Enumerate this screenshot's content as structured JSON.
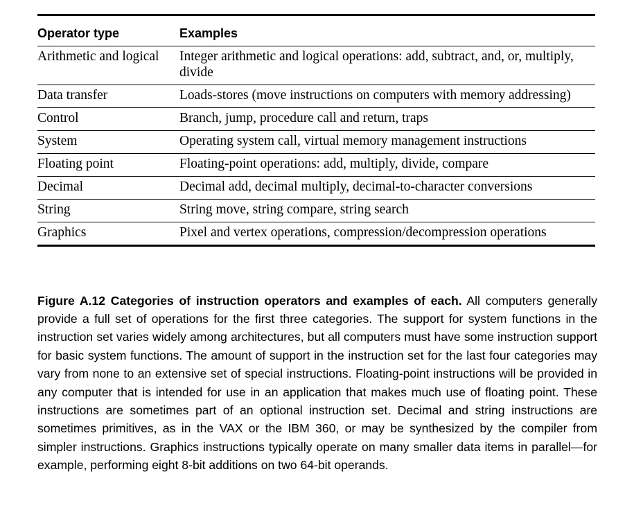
{
  "table": {
    "headers": [
      "Operator type",
      "Examples"
    ],
    "rows": [
      [
        "Arithmetic and logical",
        "Integer arithmetic and logical operations: add, subtract, and, or, multiply, divide"
      ],
      [
        "Data transfer",
        "Loads-stores (move instructions on computers with memory addressing)"
      ],
      [
        "Control",
        "Branch, jump, procedure call and return, traps"
      ],
      [
        "System",
        "Operating system call, virtual memory management instructions"
      ],
      [
        "Floating point",
        "Floating-point operations: add, multiply, divide, compare"
      ],
      [
        "Decimal",
        "Decimal add, decimal multiply, decimal-to-character conversions"
      ],
      [
        "String",
        "String move, string compare, string search"
      ],
      [
        "Graphics",
        "Pixel and vertex operations, compression/decompression operations"
      ]
    ]
  },
  "caption": {
    "label": "Figure A.12  Categories of instruction operators and examples of each.",
    "text": " All computers generally provide a full set of operations for the first three categories. The support for system functions in the instruction set varies widely among architectures, but all computers must have some instruction support for basic system functions. The amount of support in the instruction set for the last four categories may vary from none to an extensive set of special instructions. Floating-point instructions will be provided in any computer that is intended for use in an application that makes much use of floating point. These instructions are sometimes part of an optional instruction set. Decimal and string instructions are sometimes primitives, as in the VAX or the IBM 360, or may be synthesized by the compiler from simpler instructions. Graphics instructions typically operate on many smaller data items in parallel—for example, performing eight 8-bit additions on two 64-bit operands."
  }
}
